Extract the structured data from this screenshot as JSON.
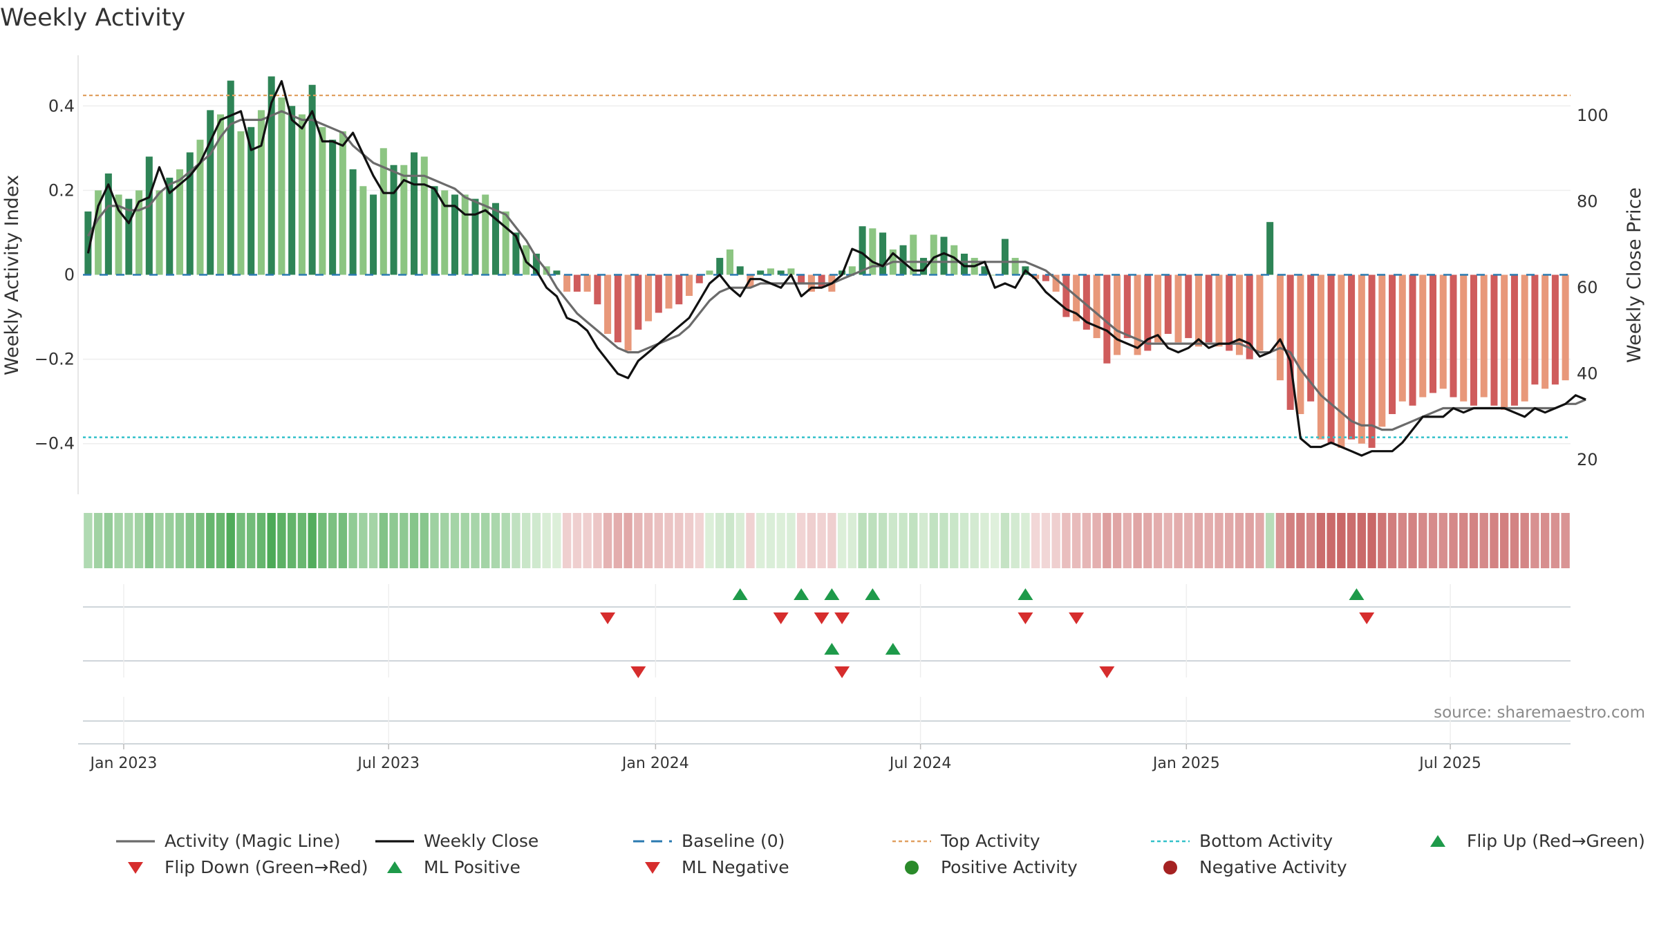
{
  "chart_data": {
    "type": "bar",
    "title": "Weekly Activity",
    "source": "source: sharemaestro.com",
    "left_axis": {
      "label": "Weekly Activity Index",
      "ylim": [
        -0.52,
        0.52
      ],
      "ticks": [
        0.4,
        0.2,
        0,
        -0.2,
        -0.4
      ],
      "tick_labels": [
        "0.4",
        "0.2",
        "0",
        "−0.2",
        "−0.4"
      ]
    },
    "right_axis": {
      "label": "Weekly Close Price",
      "ylim": [
        12,
        114
      ],
      "ticks": [
        100,
        80,
        60,
        40,
        20
      ],
      "tick_labels": [
        "100",
        "80",
        "60",
        "40",
        "20"
      ]
    },
    "x_axis": {
      "tick_labels": [
        "Jan 2023",
        "Jul 2023",
        "Jan 2024",
        "Jul 2024",
        "Jan 2025",
        "Jul 2025"
      ],
      "tick_weeks": [
        3.5,
        29.5,
        55.7,
        81.7,
        107.8,
        133.7
      ]
    },
    "top_activity": 0.425,
    "bottom_activity": -0.385,
    "activity_index": [
      0.15,
      0.2,
      0.24,
      0.19,
      0.18,
      0.2,
      0.28,
      0.2,
      0.23,
      0.25,
      0.29,
      0.32,
      0.39,
      0.38,
      0.46,
      0.34,
      0.35,
      0.39,
      0.47,
      0.42,
      0.4,
      0.38,
      0.45,
      0.35,
      0.32,
      0.34,
      0.25,
      0.21,
      0.19,
      0.3,
      0.26,
      0.26,
      0.29,
      0.28,
      0.21,
      0.2,
      0.19,
      0.19,
      0.18,
      0.19,
      0.17,
      0.15,
      0.1,
      0.07,
      0.05,
      0.02,
      0.01,
      -0.04,
      -0.04,
      -0.04,
      -0.07,
      -0.14,
      -0.16,
      -0.18,
      -0.13,
      -0.11,
      -0.09,
      -0.08,
      -0.07,
      -0.05,
      -0.02,
      0.01,
      0.04,
      0.06,
      0.02,
      -0.03,
      0.01,
      0.015,
      0.01,
      0.015,
      -0.02,
      -0.04,
      -0.03,
      -0.04,
      0.01,
      0.02,
      0.115,
      0.11,
      0.1,
      0.06,
      0.07,
      0.095,
      0.04,
      0.095,
      0.09,
      0.07,
      0.05,
      0.04,
      0.02,
      0.0,
      0.085,
      0.04,
      0.02,
      -0.01,
      -0.015,
      -0.04,
      -0.1,
      -0.11,
      -0.13,
      -0.15,
      -0.21,
      -0.19,
      -0.15,
      -0.19,
      -0.18,
      -0.16,
      -0.14,
      -0.16,
      -0.15,
      -0.17,
      -0.16,
      -0.17,
      -0.18,
      -0.19,
      -0.2,
      -0.18,
      0.125,
      -0.25,
      -0.32,
      -0.33,
      -0.3,
      -0.39,
      -0.4,
      -0.41,
      -0.39,
      -0.4,
      -0.41,
      -0.36,
      -0.33,
      -0.3,
      -0.31,
      -0.29,
      -0.28,
      -0.27,
      -0.29,
      -0.3,
      -0.31,
      -0.29,
      -0.31,
      -0.32,
      -0.31,
      -0.3,
      -0.26,
      -0.27,
      -0.26,
      -0.25
    ],
    "weekly_close": [
      68,
      79,
      84,
      78,
      75,
      80,
      81,
      88,
      82,
      84,
      86,
      89,
      94,
      99,
      100,
      101,
      92,
      93,
      103,
      108,
      99,
      97,
      101,
      94,
      94,
      93,
      96,
      91,
      86,
      82,
      82,
      85,
      84,
      84,
      83,
      79,
      79,
      77,
      77,
      78,
      76,
      74,
      72,
      66,
      64,
      60,
      58,
      53,
      52,
      50,
      46,
      43,
      40,
      39,
      43,
      45,
      47,
      49,
      51,
      53,
      57,
      61,
      63,
      60,
      58,
      62,
      62,
      61,
      60,
      63,
      58,
      60,
      60,
      61,
      63,
      69,
      68,
      66,
      65,
      68,
      66,
      64,
      64,
      67,
      68,
      67,
      65,
      65,
      66,
      60,
      61,
      60,
      64,
      62,
      59,
      57,
      55,
      54,
      52,
      51,
      50,
      48,
      47,
      46,
      48,
      49,
      46,
      45,
      46,
      48,
      46,
      47,
      47,
      48,
      47,
      44,
      45,
      48,
      43,
      25,
      23,
      23,
      24,
      23,
      22,
      21,
      22,
      22,
      22,
      24,
      27,
      30,
      30,
      30,
      32,
      31,
      32,
      32,
      32,
      32,
      31,
      30,
      32,
      31,
      32,
      33,
      35,
      34
    ],
    "magic_line": [
      72,
      76,
      79,
      79,
      78,
      78,
      79,
      82,
      84,
      85,
      87,
      89,
      91,
      95,
      98,
      99,
      99,
      99,
      100,
      101,
      100,
      99,
      99,
      98,
      97,
      96,
      93,
      91,
      89,
      88,
      87,
      86,
      86,
      86,
      85,
      84,
      83,
      81,
      80,
      79,
      78,
      77,
      74,
      71,
      67,
      64,
      60,
      57,
      54,
      52,
      50,
      48,
      46,
      45,
      45,
      46,
      47,
      48,
      49,
      51,
      54,
      57,
      59,
      60,
      60,
      60,
      61,
      61,
      61,
      61,
      61,
      61,
      61,
      61,
      62,
      63,
      64,
      65,
      65,
      66,
      66,
      66,
      66,
      66,
      66,
      66,
      66,
      66,
      66,
      66,
      66,
      66,
      66,
      65,
      64,
      62,
      60,
      58,
      56,
      54,
      52,
      50,
      49,
      48,
      47,
      47,
      47,
      47,
      47,
      47,
      47,
      47,
      47,
      47,
      46,
      45,
      45,
      46,
      45,
      41,
      38,
      35,
      33,
      31,
      29,
      28,
      28,
      27,
      27,
      28,
      29,
      30,
      31,
      32,
      32,
      32,
      32,
      32,
      32,
      32,
      32,
      32,
      32,
      32,
      32,
      33,
      33,
      34
    ],
    "bars_light": [],
    "activity_strip_colors": {
      "pos_strong": "#4daa57",
      "pos_light": "#dff0dc",
      "neg_light": "#f3dada",
      "neg_strong": "#c96767"
    },
    "flip_rows": {
      "flip_up_weeks": [
        64,
        70,
        73,
        77,
        92,
        124.5
      ],
      "flip_down_weeks": [
        51,
        68,
        72,
        74,
        92,
        97,
        125.5
      ],
      "ml_positive_weeks": [
        73,
        79
      ],
      "ml_negative_weeks": [
        54,
        74,
        100
      ]
    },
    "legend": [
      {
        "label": "Activity (Magic Line)",
        "symbol": "line",
        "color": "#6b6b6b"
      },
      {
        "label": "Weekly Close",
        "symbol": "line",
        "color": "#111111"
      },
      {
        "label": "Baseline (0)",
        "symbol": "dashed",
        "color": "#2a7ab0"
      },
      {
        "label": "Top Activity",
        "symbol": "dotted",
        "color": "#e0a060"
      },
      {
        "label": "Bottom Activity",
        "symbol": "dotted",
        "color": "#33c1c9"
      },
      {
        "label": "Flip Up (Red→Green)",
        "symbol": "tri-up",
        "color": "#1e9a4a"
      },
      {
        "label": "Flip Down (Green→Red)",
        "symbol": "tri-down",
        "color": "#d62d2d"
      },
      {
        "label": "ML Positive",
        "symbol": "tri-up",
        "color": "#1e9a4a"
      },
      {
        "label": "ML Negative",
        "symbol": "tri-down",
        "color": "#d62d2d"
      },
      {
        "label": "Positive Activity",
        "symbol": "circle",
        "color": "#2a8a2a"
      },
      {
        "label": "Negative Activity",
        "symbol": "circle",
        "color": "#a52222"
      }
    ],
    "colors": {
      "bar_pos_dark": "#2e8456",
      "bar_pos_light": "#8cc582",
      "bar_neg_dark": "#cf5c5c",
      "bar_neg_light": "#e8987a",
      "weekly_close": "#111111",
      "magic_line": "#6b6b6b",
      "top_line": "#e0a060",
      "bottom_line": "#33c1c9",
      "baseline": "#2a7ab0",
      "flip_up": "#1e9a4a",
      "flip_down": "#d62d2d"
    }
  }
}
